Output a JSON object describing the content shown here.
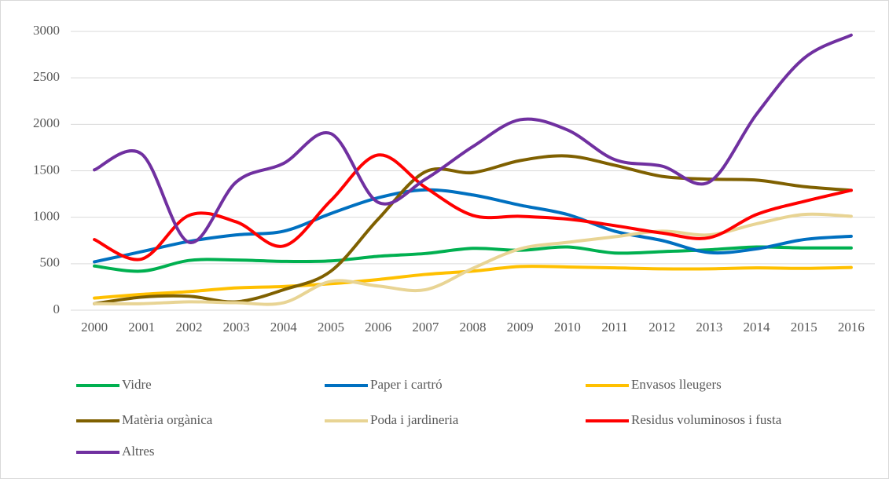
{
  "chart_data": {
    "type": "line",
    "smooth": true,
    "categories": [
      "2000",
      "2001",
      "2002",
      "2003",
      "2004",
      "2005",
      "2006",
      "2007",
      "2008",
      "2009",
      "2010",
      "2011",
      "2012",
      "2013",
      "2014",
      "2015",
      "2016"
    ],
    "ylim": [
      0,
      3000
    ],
    "yticks": [
      0,
      500,
      1000,
      1500,
      2000,
      2500,
      3000
    ],
    "grid": true,
    "legend": "bottom",
    "series": [
      {
        "name": "Vidre",
        "color": "#00b050",
        "values": [
          475,
          420,
          535,
          540,
          525,
          530,
          580,
          610,
          665,
          645,
          680,
          615,
          630,
          650,
          680,
          670,
          670
        ]
      },
      {
        "name": "Paper i cartró",
        "color": "#0070c0",
        "values": [
          520,
          630,
          740,
          810,
          850,
          1040,
          1210,
          1295,
          1240,
          1130,
          1030,
          850,
          750,
          620,
          660,
          760,
          795
        ]
      },
      {
        "name": "Envasos lleugers",
        "color": "#ffc000",
        "values": [
          130,
          170,
          200,
          240,
          255,
          285,
          330,
          385,
          420,
          470,
          465,
          455,
          445,
          445,
          455,
          450,
          460
        ]
      },
      {
        "name": "Matèria orgànica",
        "color": "#7f6000",
        "values": [
          70,
          140,
          150,
          90,
          220,
          420,
          980,
          1490,
          1480,
          1610,
          1660,
          1560,
          1440,
          1410,
          1400,
          1330,
          1290
        ]
      },
      {
        "name": "Poda i jardineria",
        "color": "#e8d494",
        "values": [
          70,
          70,
          90,
          80,
          80,
          310,
          260,
          220,
          450,
          660,
          730,
          790,
          850,
          810,
          930,
          1030,
          1010
        ]
      },
      {
        "name": "Residus voluminosos i fusta",
        "color": "#ff0000",
        "values": [
          760,
          550,
          1020,
          950,
          690,
          1180,
          1670,
          1320,
          1020,
          1010,
          980,
          910,
          830,
          780,
          1030,
          1170,
          1290
        ]
      },
      {
        "name": "Altres",
        "color": "#7030a0",
        "values": [
          1510,
          1680,
          730,
          1380,
          1580,
          1900,
          1160,
          1410,
          1760,
          2050,
          1940,
          1620,
          1550,
          1380,
          2110,
          2710,
          2960
        ]
      }
    ]
  }
}
